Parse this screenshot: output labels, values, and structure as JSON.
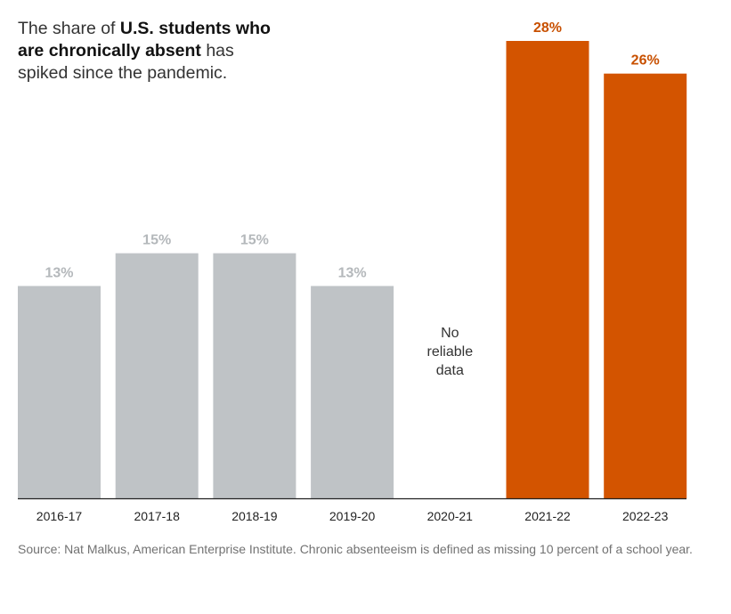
{
  "headline": {
    "part1": "The share of ",
    "bold": "U.S. students who are chronically absent",
    "part2": " has spiked since the pandemic."
  },
  "chart_data": {
    "type": "bar",
    "title": "The share of U.S. students who are chronically absent has spiked since the pandemic.",
    "categories": [
      "2016-17",
      "2017-18",
      "2018-19",
      "2019-20",
      "2020-21",
      "2021-22",
      "2022-23"
    ],
    "values": [
      13,
      15,
      15,
      13,
      null,
      28,
      26
    ],
    "data_labels": [
      "13%",
      "15%",
      "15%",
      "13%",
      "",
      "28%",
      "26%"
    ],
    "missing_note": [
      "No",
      "reliable",
      "data"
    ],
    "ylim": [
      0,
      28
    ],
    "xlabel": "",
    "ylabel": "",
    "grid": false,
    "colors": {
      "pre_pandemic": "#bfc3c6",
      "pre_pandemic_label": "#b4b8bb",
      "post_pandemic": "#d35400",
      "post_pandemic_label": "#c85000",
      "axis": "#222222",
      "tick_label": "#222222",
      "note": "#333333"
    },
    "highlight_categories": [
      "2021-22",
      "2022-23"
    ]
  },
  "source": "Source: Nat Malkus, American Enterprise Institute. Chronic absenteeism is defined as missing 10 percent of a school year."
}
